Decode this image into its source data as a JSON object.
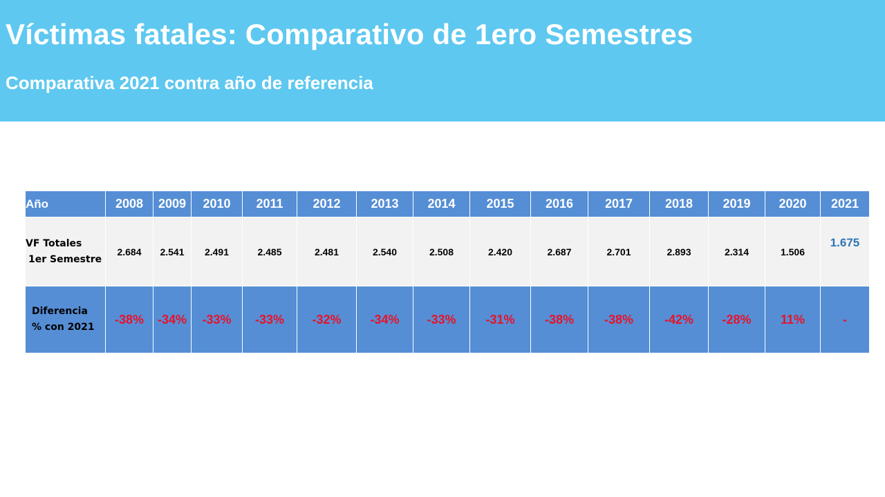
{
  "title": "Víctimas fatales: Comparativo de 1ero Semestres",
  "subtitle": "Comparativa 2021 contra año de referencia",
  "colors": {
    "header_bg": "#5ec8f0",
    "table_header_bg": "#558ed5",
    "table_row_bg": "#f2f2f2",
    "negative_text": "#e8122a",
    "reference_value": "#2e75b6"
  },
  "chart_data": {
    "type": "table",
    "row_labels": {
      "year": "Año",
      "vf_line1": "VF Totales",
      "vf_line2": "1er Semestre",
      "diff_line1": "Diferencia",
      "diff_line2": "% con 2021"
    },
    "columns": [
      {
        "year": "2008",
        "vf": "2.684",
        "diff": "-38%"
      },
      {
        "year": "2009",
        "vf": "2.541",
        "diff": "-34%"
      },
      {
        "year": "2010",
        "vf": "2.491",
        "diff": "-33%"
      },
      {
        "year": "2011",
        "vf": "2.485",
        "diff": "-33%"
      },
      {
        "year": "2012",
        "vf": "2.481",
        "diff": "-32%"
      },
      {
        "year": "2013",
        "vf": "2.540",
        "diff": "-34%"
      },
      {
        "year": "2014",
        "vf": "2.508",
        "diff": "-33%"
      },
      {
        "year": "2015",
        "vf": "2.420",
        "diff": "-31%"
      },
      {
        "year": "2016",
        "vf": "2.687",
        "diff": "-38%"
      },
      {
        "year": "2017",
        "vf": "2.701",
        "diff": "-38%"
      },
      {
        "year": "2018",
        "vf": "2.893",
        "diff": "-42%"
      },
      {
        "year": "2019",
        "vf": "2.314",
        "diff": "-28%"
      },
      {
        "year": "2020",
        "vf": "1.506",
        "diff": "11%"
      },
      {
        "year": "2021",
        "vf": "1.675",
        "diff": "-"
      }
    ]
  }
}
